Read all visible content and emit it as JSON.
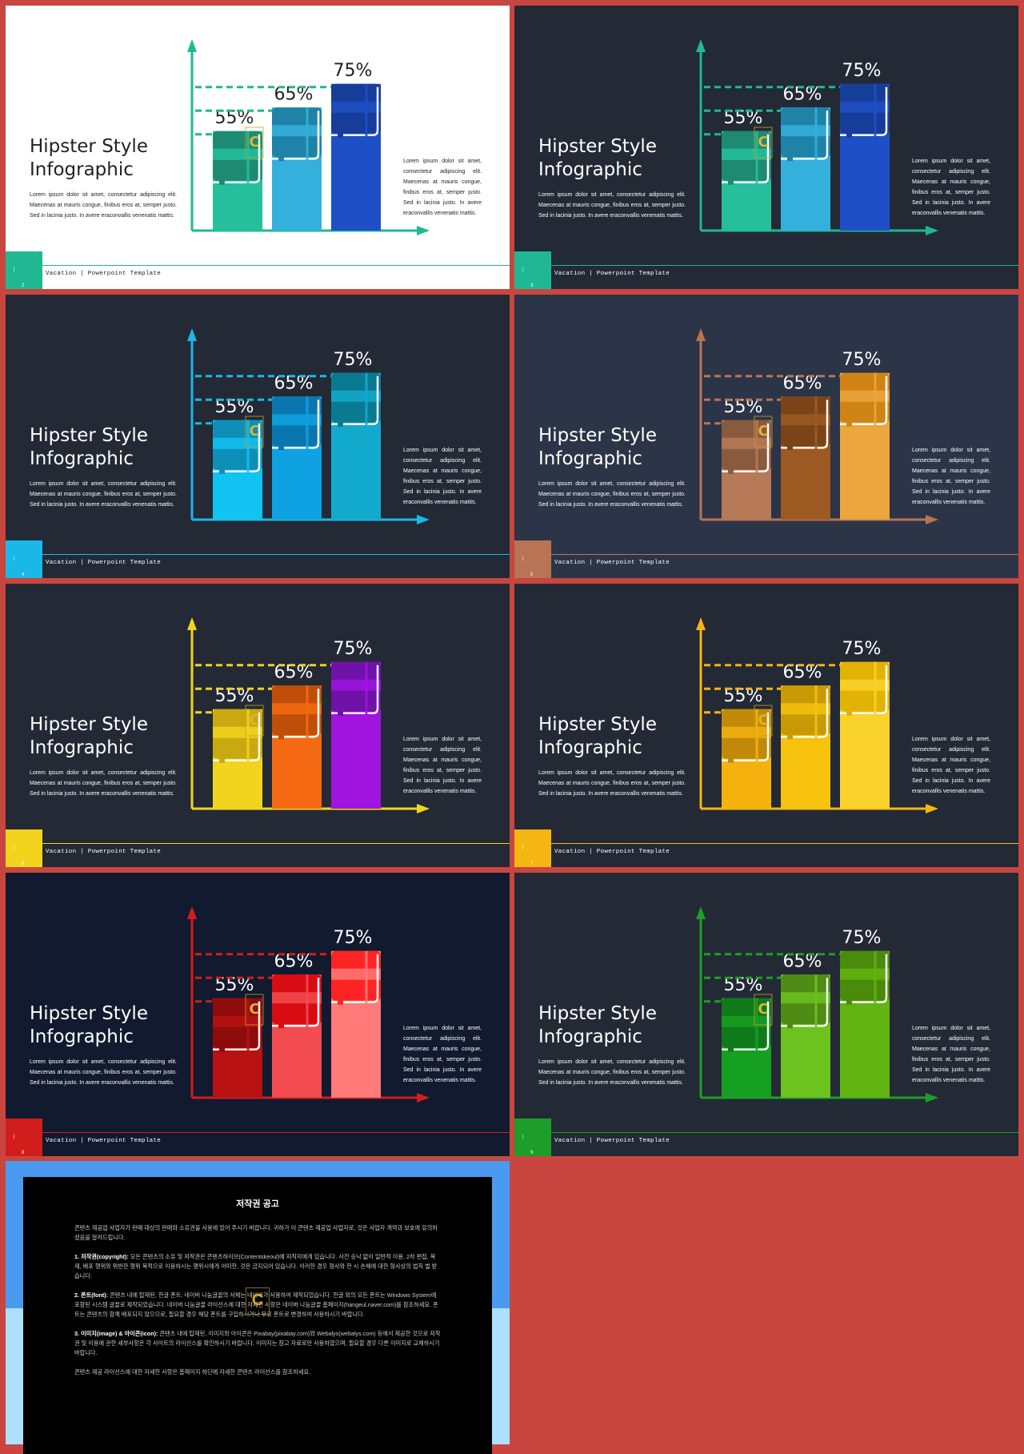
{
  "slides": [
    {
      "title_line1": "Hipster Style",
      "title_line2": "Infographic",
      "description": "Lorem ipsum dolor sit amet, consectetur adipiscing elit. Maecenas at mauris congue, finibus eros at, semper justo. Sed in lacinia justo. In avere eraconvallis venenatis mattis.",
      "side_text": "Lorem ipsum dolor sit amet, consectetur adipiscing elit. Maecenas at mauris congue, finibus eros at, semper justo. Sed in lacinia justo. In avere eraconvallis venenatis mattis.",
      "footer": "Vacation | Powerpoint Template",
      "page": "2",
      "theme": {
        "bg": "#ffffff",
        "text": "#222222",
        "accent": "#1fb893",
        "bars": [
          [
            "#1e8a72",
            "#25c09b"
          ],
          [
            "#1e83a6",
            "#34b0dd"
          ],
          [
            "#173d9a",
            "#1f4fc6"
          ]
        ]
      }
    },
    {
      "title_line1": "Hipster Style",
      "title_line2": "Infographic",
      "description": "Lorem ipsum dolor sit amet, consectetur adipiscing elit. Maecenas at mauris congue, finibus eros at, semper justo. Sed in lacinia justo. In avere eraconvallis venenatis mattis.",
      "side_text": "Lorem ipsum dolor sit amet, consectetur adipiscing elit. Maecenas at mauris congue, finibus eros at, semper justo. Sed in lacinia justo. In avere eraconvallis venenatis mattis.",
      "footer": "Vacation | Powerpoint Template",
      "page": "3",
      "theme": {
        "bg": "#232a35",
        "text": "#ffffff",
        "accent": "#1fb893",
        "bars": [
          [
            "#1e8a72",
            "#25c09b"
          ],
          [
            "#1e83a6",
            "#34b0dd"
          ],
          [
            "#173d9a",
            "#1f4fc6"
          ]
        ]
      }
    },
    {
      "title_line1": "Hipster Style",
      "title_line2": "Infographic",
      "description": "Lorem ipsum dolor sit amet, consectetur adipiscing elit. Maecenas at mauris congue, finibus eros at, semper justo. Sed in lacinia justo. In avere eraconvallis venenatis mattis.",
      "side_text": "Lorem ipsum dolor sit amet, consectetur adipiscing elit. Maecenas at mauris congue, finibus eros at, semper justo. Sed in lacinia justo. In avere eraconvallis venenatis mattis.",
      "footer": "Vacation | Powerpoint Template",
      "page": "4",
      "theme": {
        "bg": "#232a35",
        "text": "#ffffff",
        "accent": "#19b8e6",
        "bars": [
          [
            "#0e8fb8",
            "#12c2f0"
          ],
          [
            "#0a76b0",
            "#0fa2e2"
          ],
          [
            "#0a7a93",
            "#12aacc"
          ]
        ]
      }
    },
    {
      "title_line1": "Hipster Style",
      "title_line2": "Infographic",
      "description": "Lorem ipsum dolor sit amet, consectetur adipiscing elit. Maecenas at mauris congue, finibus eros at, semper justo. Sed in lacinia justo. In avere eraconvallis venenatis mattis.",
      "side_text": "Lorem ipsum dolor sit amet, consectetur adipiscing elit. Maecenas at mauris congue, finibus eros at, semper justo. Sed in lacinia justo. In avere eraconvallis venenatis mattis.",
      "footer": "Vacation | Powerpoint Template",
      "page": "5",
      "theme": {
        "bg": "#2c3447",
        "text": "#ffffff",
        "accent": "#b87455",
        "bars": [
          [
            "#8a5a3e",
            "#b77a58"
          ],
          [
            "#7a4418",
            "#9c5a22"
          ],
          [
            "#cf8414",
            "#eba63e"
          ]
        ]
      }
    },
    {
      "title_line1": "Hipster Style",
      "title_line2": "Infographic",
      "description": "Lorem ipsum dolor sit amet, consectetur adipiscing elit. Maecenas at mauris congue, finibus eros at, semper justo. Sed in lacinia justo. In avere eraconvallis venenatis mattis.",
      "side_text": "Lorem ipsum dolor sit amet, consectetur adipiscing elit. Maecenas at mauris congue, finibus eros at, semper justo. Sed in lacinia justo. In avere eraconvallis venenatis mattis.",
      "footer": "Vacation | Powerpoint Template",
      "page": "6",
      "theme": {
        "bg": "#232a35",
        "text": "#ffffff",
        "accent": "#f2d41e",
        "bars": [
          [
            "#c8aa10",
            "#f2d41e"
          ],
          [
            "#c04e08",
            "#f56a12"
          ],
          [
            "#6e12a8",
            "#a014e0"
          ]
        ]
      }
    },
    {
      "title_line1": "Hipster Style",
      "title_line2": "Infographic",
      "description": "Lorem ipsum dolor sit amet, consectetur adipiscing elit. Maecenas at mauris congue, finibus eros at, semper justo. Sed in lacinia justo. In avere eraconvallis venenatis mattis.",
      "side_text": "Lorem ipsum dolor sit amet, consectetur adipiscing elit. Maecenas at mauris congue, finibus eros at, semper justo. Sed in lacinia justo. In avere eraconvallis venenatis mattis.",
      "footer": "Vacation | Powerpoint Template",
      "page": "7",
      "theme": {
        "bg": "#232a35",
        "text": "#ffffff",
        "accent": "#f5b512",
        "bars": [
          [
            "#c08a08",
            "#f5b20e"
          ],
          [
            "#c89a06",
            "#f7c20e"
          ],
          [
            "#e2b304",
            "#fad22c"
          ]
        ]
      }
    },
    {
      "title_line1": "Hipster Style",
      "title_line2": "Infographic",
      "description": "Lorem ipsum dolor sit amet, consectetur adipiscing elit. Maecenas at mauris congue, finibus eros at, semper justo. Sed in lacinia justo. In avere eraconvallis venenatis mattis.",
      "side_text": "Lorem ipsum dolor sit amet, consectetur adipiscing elit. Maecenas at mauris congue, finibus eros at, semper justo. Sed in lacinia justo. In avere eraconvallis venenatis mattis.",
      "footer": "Vacation | Powerpoint Template",
      "page": "8",
      "theme": {
        "bg": "#111a2e",
        "text": "#ffffff",
        "accent": "#d31c1c",
        "bars": [
          [
            "#8e0c0c",
            "#b81212"
          ],
          [
            "#d80c12",
            "#f24b50"
          ],
          [
            "#ff2424",
            "#ff7a78"
          ]
        ]
      }
    },
    {
      "title_line1": "Hipster Style",
      "title_line2": "Infographic",
      "description": "Lorem ipsum dolor sit amet, consectetur adipiscing elit. Maecenas at mauris congue, finibus eros at, semper justo. Sed in lacinia justo. In avere eraconvallis venenatis mattis.",
      "side_text": "Lorem ipsum dolor sit amet, consectetur adipiscing elit. Maecenas at mauris congue, finibus eros at, semper justo. Sed in lacinia justo. In avere eraconvallis venenatis mattis.",
      "footer": "Vacation | Powerpoint Template",
      "page": "9",
      "theme": {
        "bg": "#232a35",
        "text": "#ffffff",
        "accent": "#1c9e28",
        "bars": [
          [
            "#107a1a",
            "#16a022"
          ],
          [
            "#4e8c16",
            "#6cc21e"
          ],
          [
            "#4a8a0c",
            "#62b410"
          ]
        ]
      }
    }
  ],
  "chart_data": {
    "type": "bar",
    "categories": [
      "",
      "",
      ""
    ],
    "values": [
      55,
      65,
      75
    ],
    "labels": [
      "55%",
      "65%",
      "75%"
    ]
  },
  "notice": {
    "title": "저작권 공고",
    "p1": "콘텐츠 제공업 사업자가 판매 대상의 판매와 소유권을 사용에 있어 주시기 바랍니다. 귀하가 이 콘텐츠 제공업 사업자로, 것은 사업자 계약과 보호에 유의하셨음을 알려드립니다.",
    "p2_head": "1. 저작권(copyright):",
    "p2": "모든 콘텐츠의 소유 및 저작권은 콘텐츠하이브(Contentskeoul)에 저작자에게 있습니다. 사전 승낙 없이 일반적 이용, 2차 편집, 복제, 배포 행위와 위반한 행위 목적으로 이용하시는 행위시에게 어떠한, 것은 금지되어 있습니다. 이러한 경우 형사와 한 시 손해에 대한 형사상의 법칙 벌 받습니다.",
    "p3_head": "2. 폰트(font):",
    "p3": "콘텐츠 내에 탑재된, 한글 폰트, 네이버 나눔글꼴의 서체는 네이버가 사용하여 제작되었습니다. 한글 외의 모든 폰트는 Windows System에 포함된 시스템 글꼴로 제작되었습니다. 네이버 나눔글꼴 라이선스에 대한 자세한 사항은 네이버 나눔글꼴 홈페이지(hangeul.naver.com)를 참조하세요. 폰트는 콘텐츠의 함께 배포되지 않으므로, 필요할 경우 해당 폰트를 구입하시거나 무료 폰트로 변경하여 사용하시기 바랍니다.",
    "p4_head": "3. 이미지(image) & 아이콘(icon):",
    "p4": "콘텐츠 내에 탑재된, 이미지와 아이콘은 Pixabay(pixabay.com)와 Webalys(webalys.com) 등에서 제공한 것으로 저작권 및 이용에 관한 세부사항은 각 사이트의 라이선스를 확인하시기 바랍니다. 이미지는 참고 자료로만 사용하였으며, 필요할 경우 다른 이미지로 교체하시기 바랍니다.",
    "p5": "콘텐츠 제공 라이선스에 대한 자세한 사항은 홈페이지 하단에 자세한 콘텐츠 라이선스를 참조하세요."
  }
}
